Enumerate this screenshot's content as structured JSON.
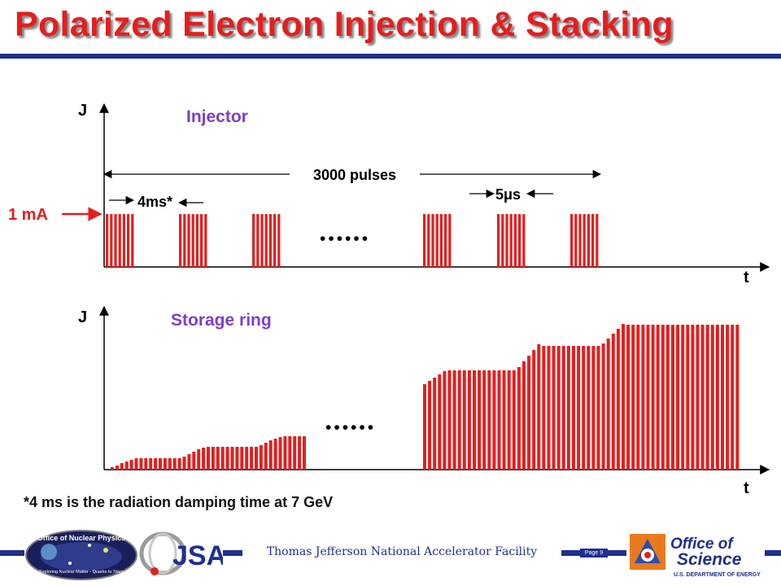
{
  "slide": {
    "title": "Polarized Electron Injection & Stacking",
    "footnote": "*4 ms is the radiation damping time at 7 GeV",
    "footer_text": "Thomas Jefferson National Accelerator Facility",
    "page_label": "Page 9"
  },
  "injector": {
    "label": "Injector",
    "y_axis": "J",
    "x_axis": "t",
    "current_label": "1 mA",
    "pulses_label": "3000 pulses",
    "spacing_label": "4ms*",
    "width_label": "5μs",
    "ellipsis": "••••••"
  },
  "storage": {
    "label": "Storage ring",
    "y_axis": "J",
    "x_axis": "t",
    "ellipsis": "••••••"
  },
  "logos": {
    "nuclear_physics": {
      "title": "Office of Nuclear Physics",
      "tagline": "Exploring Nuclear Matter - Quarks to Stars"
    },
    "jsa": {
      "text": "JSA"
    },
    "office_science": {
      "line1": "Office of",
      "line2": "Science",
      "line3": "U.S. DEPARTMENT OF ENERGY"
    }
  },
  "colors": {
    "accent_red": "#e41e1e",
    "label_purple": "#7b3fc8",
    "navy": "#1f2f8f"
  }
}
